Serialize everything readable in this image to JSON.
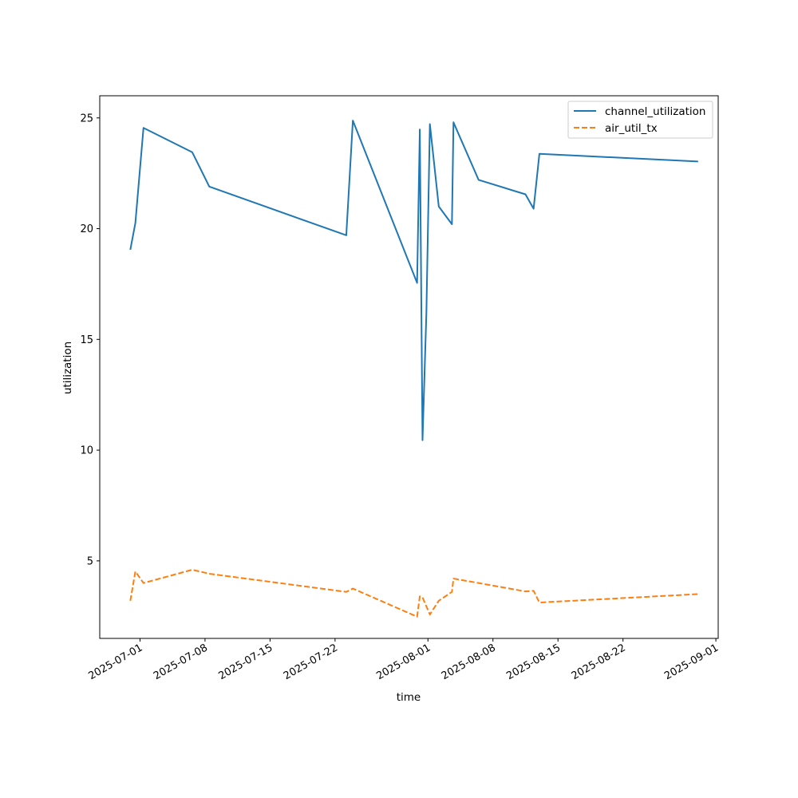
{
  "chart_data": {
    "type": "line",
    "title": "",
    "xlabel": "time",
    "ylabel": "utilization",
    "x_type": "datetime",
    "xlim": [
      "2025-06-26T16:00",
      "2025-09-01T06:00"
    ],
    "ylim": [
      1.5,
      26.0
    ],
    "x_ticks": [
      "2025-07-01",
      "2025-07-08",
      "2025-07-15",
      "2025-07-22",
      "2025-08-01",
      "2025-08-08",
      "2025-08-15",
      "2025-08-22",
      "2025-09-01"
    ],
    "y_ticks": [
      5,
      10,
      15,
      20,
      25
    ],
    "grid": false,
    "legend": "upper right",
    "series": [
      {
        "name": "channel_utilization",
        "color": "#1f77b4",
        "style": "solid",
        "x": [
          "2025-06-29T23:00",
          "2025-06-30T12:00",
          "2025-07-01T09:00",
          "2025-07-06T15:00",
          "2025-07-08T11:00",
          "2025-07-23T05:00",
          "2025-07-23T22:00",
          "2025-07-30T20:00",
          "2025-07-31T03:00",
          "2025-07-31T10:00",
          "2025-07-31T20:00",
          "2025-08-01T05:00",
          "2025-08-02T04:00",
          "2025-08-03T14:00",
          "2025-08-03T18:00",
          "2025-08-06T11:00",
          "2025-08-11T12:00",
          "2025-08-12T09:00",
          "2025-08-13T00:00",
          "2025-08-30T02:00"
        ],
        "values": [
          19.05,
          20.25,
          24.55,
          23.45,
          21.9,
          19.7,
          24.88,
          17.55,
          24.48,
          10.45,
          16.2,
          24.72,
          21.0,
          20.2,
          24.8,
          22.2,
          21.55,
          20.9,
          23.38,
          23.03
        ]
      },
      {
        "name": "air_util_tx",
        "color": "#ff7f0e",
        "style": "dashed",
        "x": [
          "2025-06-29T23:00",
          "2025-06-30T12:00",
          "2025-07-01T09:00",
          "2025-07-06T15:00",
          "2025-07-08T11:00",
          "2025-07-23T05:00",
          "2025-07-23T22:00",
          "2025-07-30T20:00",
          "2025-07-31T03:00",
          "2025-07-31T10:00",
          "2025-08-01T05:00",
          "2025-08-02T04:00",
          "2025-08-03T14:00",
          "2025-08-03T18:00",
          "2025-08-06T11:00",
          "2025-08-11T12:00",
          "2025-08-12T09:00",
          "2025-08-13T00:00",
          "2025-08-30T02:00"
        ],
        "values": [
          3.2,
          4.52,
          4.0,
          4.6,
          4.42,
          3.6,
          3.75,
          2.48,
          3.4,
          3.35,
          2.58,
          3.2,
          3.6,
          4.2,
          4.0,
          3.62,
          3.65,
          3.12,
          3.5
        ]
      }
    ]
  }
}
